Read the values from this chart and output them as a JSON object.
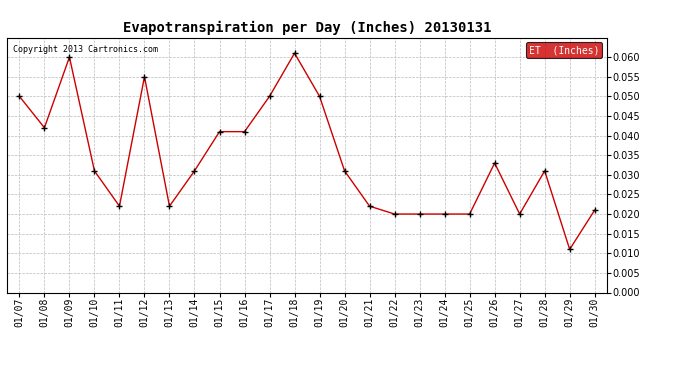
{
  "title": "Evapotranspiration per Day (Inches) 20130131",
  "copyright_text": "Copyright 2013 Cartronics.com",
  "legend_label": "ET  (Inches)",
  "dates": [
    "01/07",
    "01/08",
    "01/09",
    "01/10",
    "01/11",
    "01/12",
    "01/13",
    "01/14",
    "01/15",
    "01/16",
    "01/17",
    "01/18",
    "01/19",
    "01/20",
    "01/21",
    "01/22",
    "01/23",
    "01/24",
    "01/25",
    "01/26",
    "01/27",
    "01/28",
    "01/29",
    "01/30"
  ],
  "values": [
    0.05,
    0.042,
    0.06,
    0.031,
    0.022,
    0.055,
    0.022,
    0.031,
    0.041,
    0.041,
    0.05,
    0.061,
    0.05,
    0.031,
    0.022,
    0.02,
    0.02,
    0.02,
    0.02,
    0.033,
    0.02,
    0.031,
    0.011,
    0.021
  ],
  "ylim": [
    0.0,
    0.065
  ],
  "ytick_min": 0.0,
  "ytick_max": 0.06,
  "ytick_step": 0.005,
  "line_color": "#cc0000",
  "marker_color": "#000000",
  "legend_bg_color": "#cc0000",
  "legend_text_color": "#ffffff",
  "bg_color": "#ffffff",
  "grid_color": "#bbbbbb",
  "title_fontsize": 10,
  "copyright_fontsize": 6,
  "tick_fontsize": 7,
  "legend_fontsize": 7
}
